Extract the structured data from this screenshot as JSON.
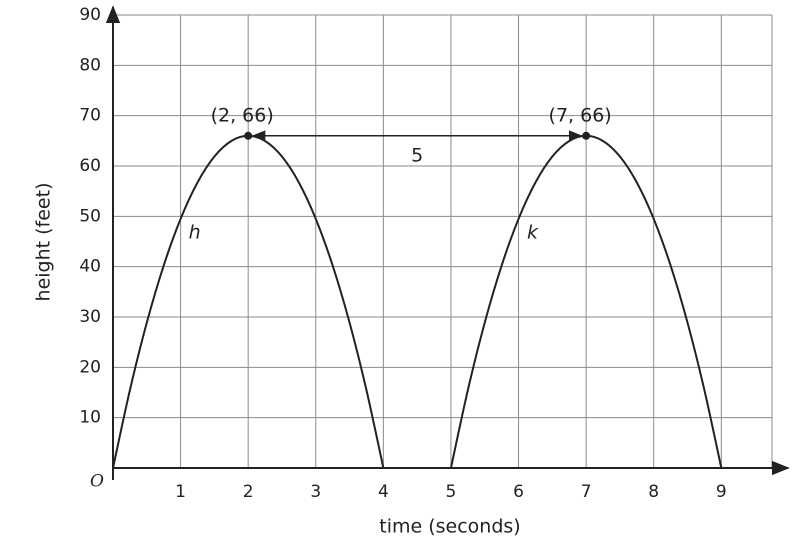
{
  "chart_data": {
    "type": "line",
    "x_label": "time (seconds)",
    "y_label": "height (feet)",
    "origin_label": "O",
    "xlim": [
      0,
      9.75
    ],
    "ylim": [
      0,
      90
    ],
    "xticks": [
      1,
      2,
      3,
      4,
      5,
      6,
      7,
      8,
      9
    ],
    "yticks": [
      10,
      20,
      30,
      40,
      50,
      60,
      70,
      80,
      90
    ],
    "grid": true,
    "series": [
      {
        "name": "h",
        "color": "#222222",
        "x": [
          0,
          0.25,
          0.5,
          0.75,
          1,
          1.25,
          1.5,
          1.75,
          2,
          2.25,
          2.5,
          2.75,
          3,
          3.25,
          3.5,
          3.75,
          4
        ],
        "values": [
          0,
          15.47,
          28.88,
          40.22,
          49.5,
          56.72,
          61.88,
          64.97,
          66,
          64.97,
          61.88,
          56.72,
          49.5,
          40.22,
          28.88,
          15.47,
          0
        ]
      },
      {
        "name": "k",
        "color": "#222222",
        "x": [
          5,
          5.25,
          5.5,
          5.75,
          6,
          6.25,
          6.5,
          6.75,
          7,
          7.25,
          7.5,
          7.75,
          8,
          8.25,
          8.5,
          8.75,
          9
        ],
        "values": [
          0,
          15.47,
          28.88,
          40.22,
          49.5,
          56.72,
          61.88,
          64.97,
          66,
          64.97,
          61.88,
          56.72,
          49.5,
          40.22,
          28.88,
          15.47,
          0
        ]
      }
    ],
    "points": [
      {
        "x": 2,
        "y": 66,
        "label": "(2, 66)"
      },
      {
        "x": 7,
        "y": 66,
        "label": "(7, 66)"
      }
    ],
    "arrow": {
      "from": 2,
      "to": 7,
      "y": 66,
      "label": "5"
    }
  }
}
